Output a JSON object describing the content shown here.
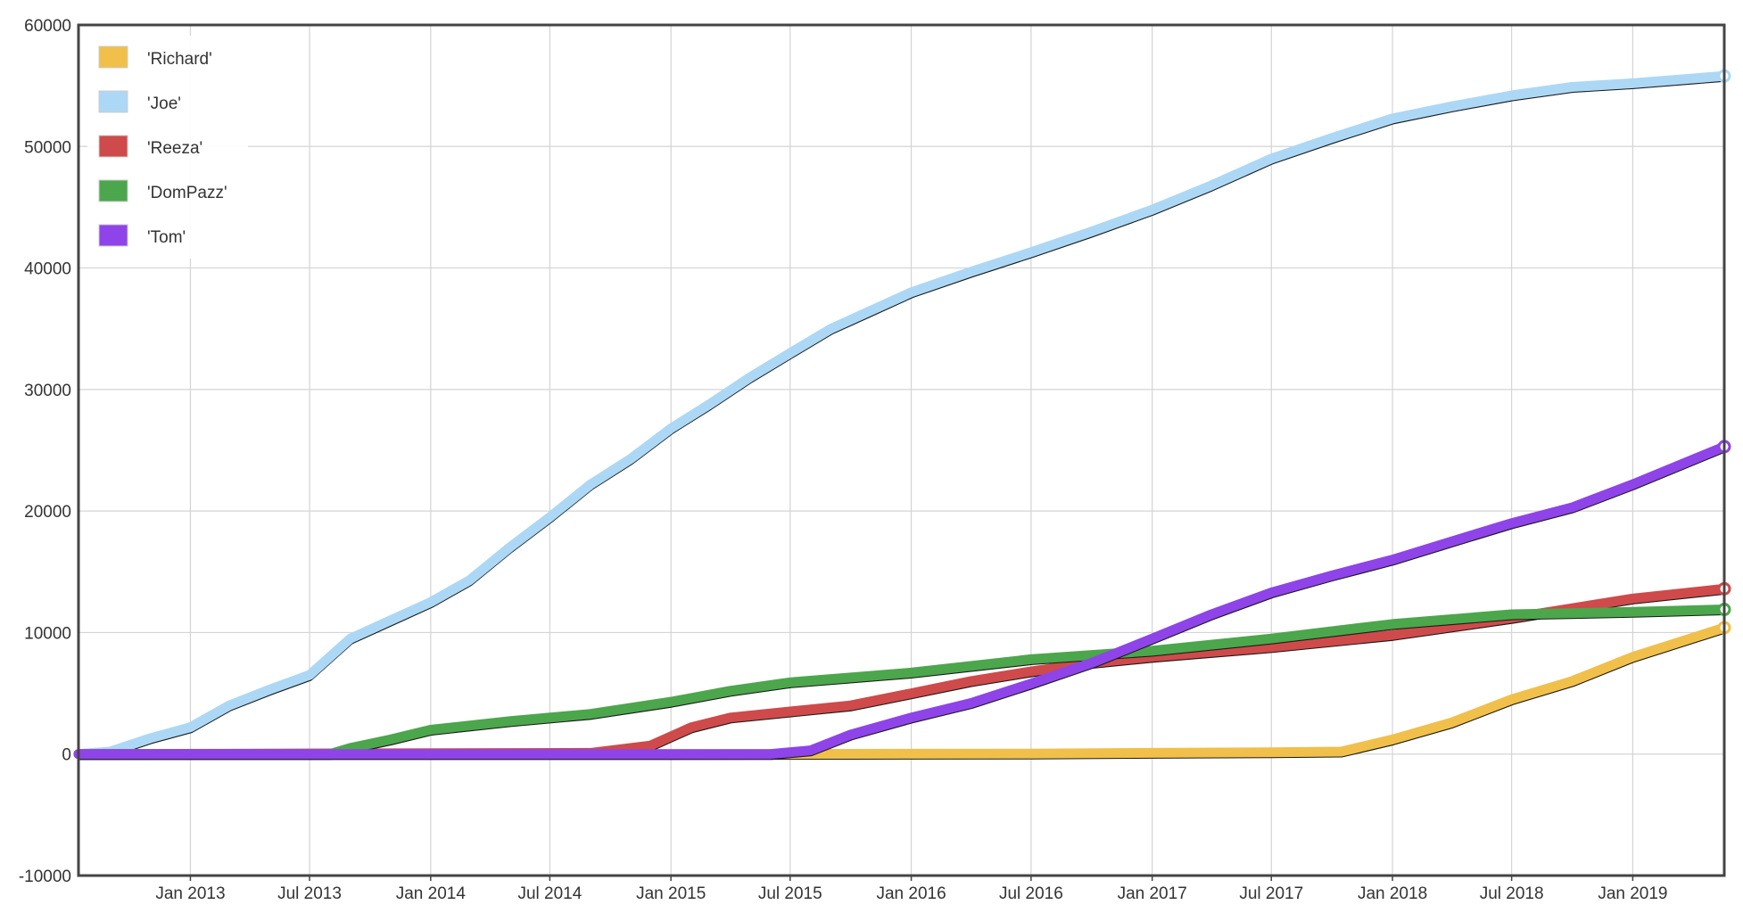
{
  "chart_data": {
    "type": "line",
    "title": "",
    "xlabel": "",
    "ylabel": "",
    "x_ticks": [
      "Jan 2013",
      "Jul 2013",
      "Jan 2014",
      "Jul 2014",
      "Jan 2015",
      "Jul 2015",
      "Jan 2016",
      "Jul 2016",
      "Jan 2017",
      "Jul 2017",
      "Jan 2018",
      "Jul 2018",
      "Jan 2019"
    ],
    "y_ticks": [
      -10000,
      0,
      10000,
      20000,
      30000,
      40000,
      50000,
      60000
    ],
    "xlim": [
      "2012-07-15",
      "2019-05-20"
    ],
    "ylim": [
      -10000,
      60000
    ],
    "grid": true,
    "legend_position": "top-left",
    "series": [
      {
        "name": "'Richard'",
        "color": "#f0c04a",
        "points": [
          [
            "2012-07-15",
            0
          ],
          [
            "2015-01-01",
            0
          ],
          [
            "2015-07-01",
            10
          ],
          [
            "2016-01-01",
            20
          ],
          [
            "2016-07-01",
            40
          ],
          [
            "2017-01-01",
            100
          ],
          [
            "2017-07-01",
            150
          ],
          [
            "2017-10-15",
            200
          ],
          [
            "2018-01-01",
            1200
          ],
          [
            "2018-04-01",
            2600
          ],
          [
            "2018-07-01",
            4500
          ],
          [
            "2018-10-01",
            6000
          ],
          [
            "2019-01-01",
            8000
          ],
          [
            "2019-05-20",
            10400
          ]
        ]
      },
      {
        "name": "'Joe'",
        "color": "#acd8f5",
        "points": [
          [
            "2012-07-15",
            0
          ],
          [
            "2012-09-01",
            200
          ],
          [
            "2012-11-01",
            1300
          ],
          [
            "2013-01-01",
            2200
          ],
          [
            "2013-03-01",
            4000
          ],
          [
            "2013-05-01",
            5300
          ],
          [
            "2013-07-01",
            6500
          ],
          [
            "2013-09-01",
            9500
          ],
          [
            "2013-11-01",
            11000
          ],
          [
            "2014-01-01",
            12500
          ],
          [
            "2014-03-01",
            14300
          ],
          [
            "2014-05-01",
            17000
          ],
          [
            "2014-07-01",
            19500
          ],
          [
            "2014-09-01",
            22200
          ],
          [
            "2014-11-01",
            24300
          ],
          [
            "2015-01-01",
            26800
          ],
          [
            "2015-03-01",
            28800
          ],
          [
            "2015-05-01",
            31000
          ],
          [
            "2015-07-01",
            33000
          ],
          [
            "2015-09-01",
            35000
          ],
          [
            "2015-11-01",
            36500
          ],
          [
            "2016-01-01",
            38000
          ],
          [
            "2016-04-01",
            39700
          ],
          [
            "2016-07-01",
            41300
          ],
          [
            "2016-10-01",
            43000
          ],
          [
            "2017-01-01",
            44800
          ],
          [
            "2017-04-01",
            46800
          ],
          [
            "2017-07-01",
            49000
          ],
          [
            "2017-10-01",
            50700
          ],
          [
            "2018-01-01",
            52300
          ],
          [
            "2018-04-01",
            53300
          ],
          [
            "2018-07-01",
            54200
          ],
          [
            "2018-10-01",
            54900
          ],
          [
            "2019-01-01",
            55200
          ],
          [
            "2019-05-20",
            55800
          ]
        ]
      },
      {
        "name": "'Reeza'",
        "color": "#cf4a4a",
        "points": [
          [
            "2012-07-15",
            0
          ],
          [
            "2014-09-01",
            100
          ],
          [
            "2014-12-01",
            700
          ],
          [
            "2015-02-01",
            2200
          ],
          [
            "2015-04-01",
            3000
          ],
          [
            "2015-07-01",
            3500
          ],
          [
            "2015-10-01",
            4000
          ],
          [
            "2016-01-01",
            5000
          ],
          [
            "2016-04-01",
            6000
          ],
          [
            "2016-07-01",
            6800
          ],
          [
            "2016-10-01",
            7500
          ],
          [
            "2017-01-01",
            8000
          ],
          [
            "2017-07-01",
            8800
          ],
          [
            "2018-01-01",
            9800
          ],
          [
            "2018-07-01",
            11200
          ],
          [
            "2019-01-01",
            12800
          ],
          [
            "2019-05-20",
            13600
          ]
        ]
      },
      {
        "name": "'DomPazz'",
        "color": "#4ca64c",
        "points": [
          [
            "2012-07-15",
            0
          ],
          [
            "2013-08-01",
            0
          ],
          [
            "2013-09-01",
            500
          ],
          [
            "2013-11-01",
            1200
          ],
          [
            "2014-01-01",
            2000
          ],
          [
            "2014-05-01",
            2700
          ],
          [
            "2014-09-01",
            3300
          ],
          [
            "2015-01-01",
            4300
          ],
          [
            "2015-04-01",
            5200
          ],
          [
            "2015-07-01",
            5900
          ],
          [
            "2015-10-01",
            6300
          ],
          [
            "2016-01-01",
            6700
          ],
          [
            "2016-07-01",
            7800
          ],
          [
            "2017-01-01",
            8500
          ],
          [
            "2017-07-01",
            9500
          ],
          [
            "2018-01-01",
            10700
          ],
          [
            "2018-07-01",
            11500
          ],
          [
            "2019-01-01",
            11700
          ],
          [
            "2019-05-20",
            11900
          ]
        ]
      },
      {
        "name": "'Tom'",
        "color": "#8e44e8",
        "points": [
          [
            "2012-07-15",
            0
          ],
          [
            "2015-06-01",
            0
          ],
          [
            "2015-08-01",
            300
          ],
          [
            "2015-10-01",
            1600
          ],
          [
            "2016-01-01",
            3000
          ],
          [
            "2016-04-01",
            4200
          ],
          [
            "2016-07-01",
            5800
          ],
          [
            "2016-10-01",
            7500
          ],
          [
            "2017-01-01",
            9500
          ],
          [
            "2017-04-01",
            11500
          ],
          [
            "2017-07-01",
            13300
          ],
          [
            "2017-10-01",
            14700
          ],
          [
            "2018-01-01",
            16000
          ],
          [
            "2018-04-01",
            17500
          ],
          [
            "2018-07-01",
            19000
          ],
          [
            "2018-10-01",
            20300
          ],
          [
            "2019-01-01",
            22200
          ],
          [
            "2019-05-20",
            25300
          ]
        ]
      }
    ]
  }
}
